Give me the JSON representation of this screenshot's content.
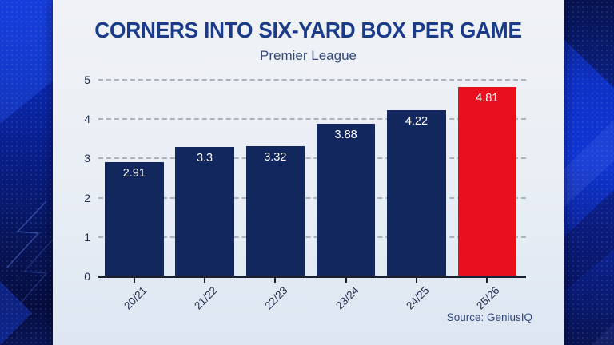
{
  "chart_data": {
    "type": "bar",
    "title": "CORNERS INTO SIX-YARD BOX PER GAME",
    "subtitle": "Premier League",
    "categories": [
      "20/21",
      "21/22",
      "22/23",
      "23/24",
      "24/25",
      "25/26"
    ],
    "values": [
      2.91,
      3.3,
      3.32,
      3.88,
      4.22,
      4.81
    ],
    "value_labels": [
      "2.91",
      "3.3",
      "3.32",
      "3.88",
      "4.22",
      "4.81"
    ],
    "highlight_index": 5,
    "ylim": [
      0,
      5
    ],
    "yticks": [
      0,
      1,
      2,
      3,
      4,
      5
    ],
    "grid": "horizontal-dashed",
    "legend": "none",
    "source": "Source: GeniusIQ",
    "colors": {
      "bar": "#12275e",
      "highlight_bar": "#e8101f",
      "title": "#1a3a8a",
      "subtitle": "#33497e",
      "axis_text": "#232e4e",
      "gridline": "#a3a8b0",
      "baseline": "#1a2030",
      "value_label": "#ffffff",
      "card_background": "#e9eef5",
      "frame_blue": "#0c30cf"
    }
  }
}
